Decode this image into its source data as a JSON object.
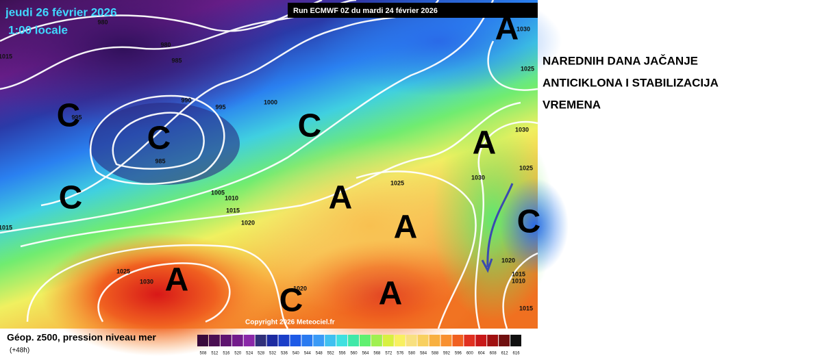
{
  "map": {
    "date": "jeudi 26 février 2026",
    "time": "1:00 locale",
    "run": "Run ECMWF 0Z du mardi 24 février 2026",
    "copyright": "Copyright 2026 Meteociel.fr",
    "pressure_centers": [
      "A",
      "C",
      "C",
      "C",
      "C",
      "A",
      "A",
      "A",
      "C",
      "A",
      "A",
      "C"
    ],
    "isobar_labels": [
      "980",
      "980",
      "985",
      "990",
      "995",
      "1000",
      "985",
      "995",
      "1015",
      "1005",
      "1010",
      "1015",
      "1020",
      "1015",
      "1025",
      "1030",
      "1020",
      "1025",
      "1030",
      "1030",
      "1025",
      "1025",
      "1030",
      "1020",
      "1015",
      "1010",
      "1015"
    ]
  },
  "legend": {
    "title": "Géop. z500, pression niveau mer",
    "lead": "(+48h)",
    "scale": [
      508,
      512,
      516,
      520,
      524,
      528,
      532,
      536,
      540,
      544,
      548,
      552,
      556,
      560,
      564,
      568,
      572,
      576,
      580,
      584,
      588,
      592,
      596,
      600,
      604,
      608,
      612,
      616
    ],
    "colors": [
      "#3a0a3a",
      "#4a0f52",
      "#5e1470",
      "#731c8c",
      "#8a28a8",
      "#30307a",
      "#1c2aa0",
      "#1a3ec8",
      "#1e5ae6",
      "#2a7af0",
      "#3a9af6",
      "#40c0f0",
      "#40e0e0",
      "#40e8a8",
      "#60f070",
      "#a0f050",
      "#d8f040",
      "#f8f060",
      "#f8e080",
      "#f8d060",
      "#f8b040",
      "#f89030",
      "#f06020",
      "#e03020",
      "#c81818",
      "#a01010",
      "#701010",
      "#101010"
    ]
  },
  "annotation": {
    "lines": [
      "NAREDNIH DANA JAČANJE",
      "ANTICIKLONA I STABILIZACIJA",
      "VREMENA"
    ]
  }
}
